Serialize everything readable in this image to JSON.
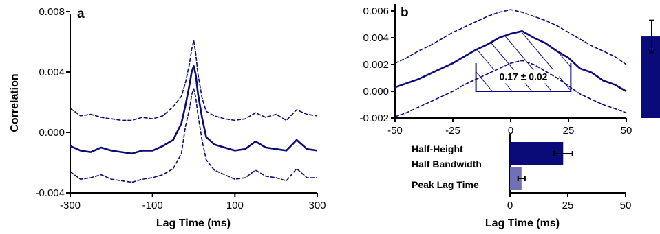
{
  "colors": {
    "navy": "#0a0a78",
    "lavender": "#7070b8",
    "black": "#000000"
  },
  "chart_data": [
    {
      "panel_label": "a",
      "type": "line",
      "xlabel": "Lag Time (ms)",
      "ylabel": "Correlation",
      "xlim": [
        -300,
        300
      ],
      "ylim": [
        -0.004,
        0.008
      ],
      "x_ticks": [
        "-300",
        "-100",
        "100",
        "300"
      ],
      "y_ticks": [
        "-0.004",
        "0.000",
        "0.004",
        "0.008"
      ],
      "grid": false,
      "x": [
        -300,
        -275,
        -250,
        -225,
        -200,
        -175,
        -150,
        -125,
        -100,
        -75,
        -50,
        -30,
        -20,
        -10,
        -5,
        0,
        5,
        10,
        20,
        30,
        50,
        75,
        100,
        125,
        150,
        175,
        200,
        225,
        250,
        275,
        300
      ],
      "series": [
        {
          "style": "dashed-upper",
          "values": [
            0.0016,
            0.0011,
            0.0012,
            0.001,
            0.0009,
            0.0008,
            0.0008,
            0.001,
            0.0009,
            0.0011,
            0.0017,
            0.0024,
            0.0033,
            0.0046,
            0.0055,
            0.0061,
            0.0052,
            0.0039,
            0.0023,
            0.0014,
            0.0011,
            0.0009,
            0.0008,
            0.0009,
            0.0013,
            0.001,
            0.0012,
            0.0008,
            0.0015,
            0.0012,
            0.0011
          ]
        },
        {
          "style": "solid-mean",
          "values": [
            -0.0009,
            -0.0012,
            -0.0013,
            -0.001,
            -0.0012,
            -0.0013,
            -0.0014,
            -0.0012,
            -0.0012,
            -0.0009,
            -0.0005,
            0.0006,
            0.0018,
            0.0032,
            0.004,
            0.0044,
            0.0038,
            0.0026,
            0.001,
            -0.0003,
            -0.0008,
            -0.001,
            -0.0012,
            -0.0011,
            -0.0006,
            -0.001,
            -0.0011,
            -0.0012,
            -0.0005,
            -0.0011,
            -0.0012
          ]
        },
        {
          "style": "dashed-lower",
          "values": [
            -0.0026,
            -0.0031,
            -0.003,
            -0.0028,
            -0.0031,
            -0.0032,
            -0.0033,
            -0.0031,
            -0.003,
            -0.0028,
            -0.0024,
            -0.0014,
            0.0004,
            0.0016,
            0.0025,
            0.0029,
            0.0023,
            0.0012,
            -0.0005,
            -0.0018,
            -0.0025,
            -0.0028,
            -0.0031,
            -0.003,
            -0.0025,
            -0.0029,
            -0.003,
            -0.0032,
            -0.0024,
            -0.003,
            -0.003
          ]
        }
      ]
    },
    {
      "panel_label": "b",
      "type": "line",
      "xlabel": "",
      "ylabel": "",
      "xlim": [
        -50,
        50
      ],
      "ylim": [
        -0.002,
        0.006
      ],
      "x_ticks": [
        "-50",
        "-25",
        "0",
        "25",
        "50"
      ],
      "y_ticks": [
        "-0.002",
        "0.000",
        "0.002",
        "0.004",
        "0.006"
      ],
      "grid": false,
      "x": [
        -50,
        -45,
        -40,
        -35,
        -30,
        -25,
        -20,
        -15,
        -10,
        -5,
        0,
        5,
        10,
        15,
        20,
        25,
        30,
        35,
        40,
        45,
        50
      ],
      "series": [
        {
          "style": "dashed-upper",
          "values": [
            0.0021,
            0.0025,
            0.003,
            0.0034,
            0.0039,
            0.0044,
            0.0048,
            0.0052,
            0.0056,
            0.0059,
            0.0061,
            0.0059,
            0.0056,
            0.0053,
            0.0049,
            0.0044,
            0.0039,
            0.0034,
            0.003,
            0.0026,
            0.002
          ]
        },
        {
          "style": "solid-mean",
          "values": [
            0.0003,
            0.0006,
            0.0009,
            0.0013,
            0.0017,
            0.0021,
            0.0026,
            0.0031,
            0.0035,
            0.004,
            0.0043,
            0.0045,
            0.004,
            0.0036,
            0.003,
            0.0025,
            0.0017,
            0.0014,
            0.0008,
            0.0005,
            0.0
          ]
        },
        {
          "style": "dashed-lower",
          "values": [
            -0.0019,
            -0.0016,
            -0.0012,
            -0.0008,
            -0.0004,
            0.0,
            0.0005,
            0.0009,
            0.0013,
            0.0017,
            0.0021,
            0.0023,
            0.002,
            0.0015,
            0.001,
            0.0004,
            -0.0002,
            -0.0006,
            -0.001,
            -0.0013,
            -0.0016
          ]
        }
      ],
      "hatched_region": {
        "x_start": -15,
        "x_end": 26,
        "baseline": 0.0,
        "label": "0.17 ± 0.02"
      }
    },
    {
      "type": "bar",
      "orientation": "horizontal",
      "xlabel": "Lag Time (ms)",
      "xlim": [
        0,
        50
      ],
      "x_ticks": [
        "0",
        "25",
        "50"
      ],
      "categories": [
        "Half-Height Half Bandwidth",
        "Peak Lag Time"
      ],
      "category_lines": [
        [
          "Half-Height",
          "Half Bandwidth"
        ],
        [
          "Peak Lag Time"
        ]
      ],
      "values": [
        23,
        5
      ],
      "errors": [
        4,
        1.5
      ],
      "bar_colors": [
        "#0a0a78",
        "#7070b8"
      ]
    },
    {
      "type": "bar",
      "orientation": "vertical",
      "note": "partially visible bar at right edge",
      "values": [
        0.0041
      ],
      "errors": [
        0.0012
      ],
      "ylim": [
        -0.002,
        0.006
      ]
    }
  ]
}
